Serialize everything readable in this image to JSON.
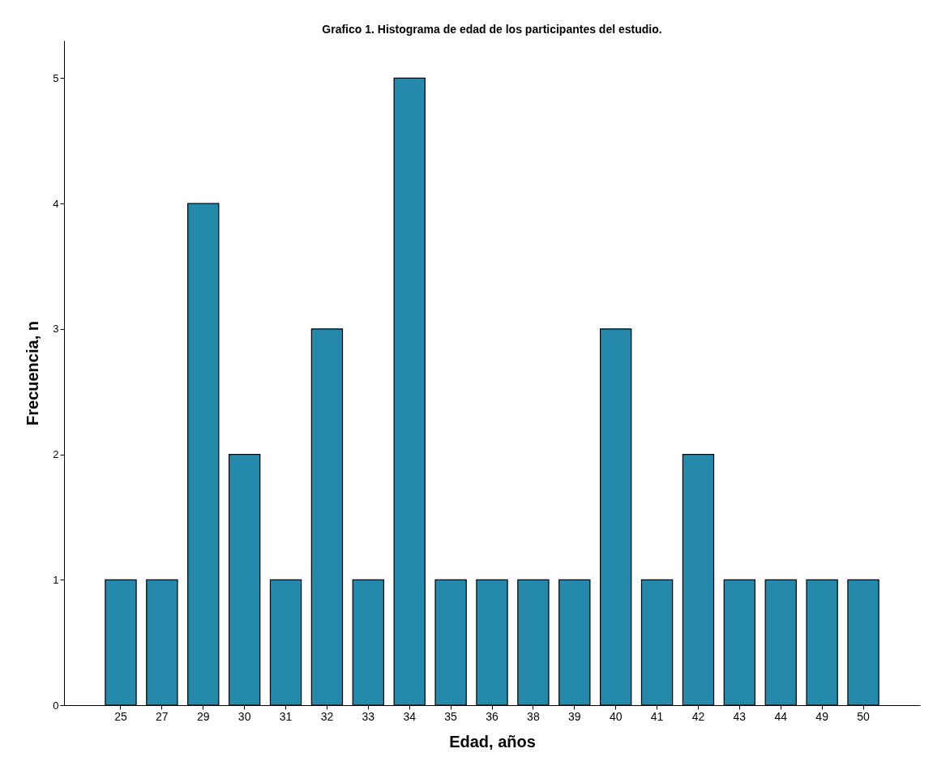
{
  "chart_data": {
    "type": "bar",
    "title": "Grafico 1. Histograma de edad de los participantes del estudio.",
    "xlabel": "Edad, años",
    "ylabel": "Frecuencia, n",
    "categories": [
      "25",
      "27",
      "29",
      "30",
      "31",
      "32",
      "33",
      "34",
      "35",
      "36",
      "38",
      "39",
      "40",
      "41",
      "42",
      "43",
      "44",
      "49",
      "50"
    ],
    "series": [
      {
        "color": "#2589ab",
        "values": [
          1,
          1,
          4,
          2,
          1,
          3,
          1,
          5,
          1,
          1,
          1,
          1,
          3,
          1,
          2,
          1,
          1,
          1,
          1
        ]
      }
    ],
    "ylim": [
      0,
      5.3
    ],
    "yticks": [
      0,
      1,
      2,
      3,
      4,
      5
    ],
    "grid": false
  }
}
